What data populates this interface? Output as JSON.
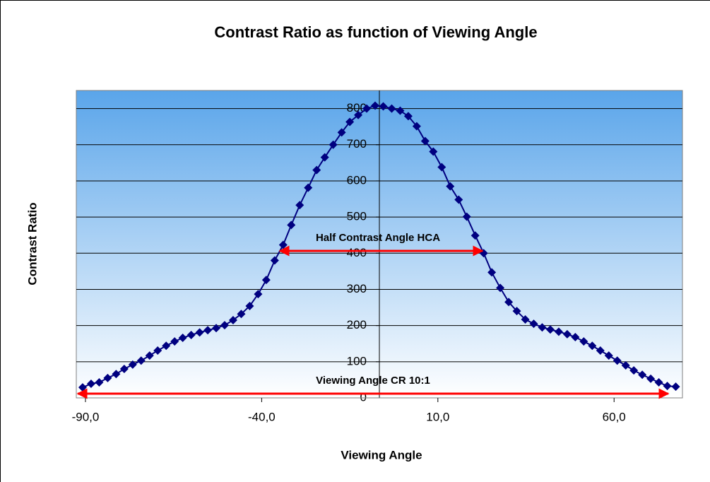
{
  "chart_data": {
    "type": "line",
    "title": "Contrast Ratio as function of Viewing Angle",
    "x_label": "Viewing Angle",
    "y_label": "Contrast Ratio",
    "x": [
      -90.8,
      -88.4,
      -86.1,
      -83.7,
      -81.3,
      -79.0,
      -76.6,
      -74.2,
      -71.8,
      -69.5,
      -67.1,
      -64.7,
      -62.4,
      -60.0,
      -57.6,
      -55.3,
      -52.9,
      -50.5,
      -48.1,
      -45.8,
      -43.4,
      -41.0,
      -38.7,
      -36.3,
      -33.9,
      -31.6,
      -29.2,
      -26.8,
      -24.4,
      -22.1,
      -19.7,
      -17.3,
      -15.0,
      -12.6,
      -10.2,
      -7.8,
      -5.5,
      -3.1,
      -0.7,
      1.6,
      4.0,
      6.4,
      8.7,
      11.1,
      13.5,
      15.9,
      18.2,
      20.6,
      23.0,
      25.3,
      27.7,
      30.1,
      32.4,
      34.8,
      37.2,
      39.6,
      41.9,
      44.3,
      46.7,
      49.0,
      51.4,
      53.8,
      56.1,
      58.5,
      60.9,
      63.3,
      65.6,
      68.0,
      70.4,
      72.7,
      75.1,
      77.5
    ],
    "series": [
      {
        "name": "Contrast Ratio",
        "color": "#000080",
        "values": [
          29,
          39,
          43,
          55,
          66,
          80,
          92,
          103,
          117,
          131,
          144,
          156,
          166,
          174,
          181,
          187,
          193,
          201,
          215,
          232,
          254,
          287,
          326,
          380,
          423,
          478,
          533,
          581,
          630,
          665,
          700,
          734,
          763,
          782,
          800,
          808,
          806,
          800,
          794,
          779,
          751,
          710,
          681,
          638,
          585,
          548,
          501,
          449,
          400,
          347,
          304,
          265,
          240,
          217,
          205,
          195,
          189,
          183,
          176,
          168,
          156,
          144,
          131,
          117,
          103,
          90,
          76,
          64,
          53,
          43,
          33,
          31
        ]
      }
    ],
    "xlim": [
      -92.6,
      79.4
    ],
    "xticks": [
      {
        "value": -90,
        "label": "-90,0"
      },
      {
        "value": -40,
        "label": "-40,0"
      },
      {
        "value": 10,
        "label": "10,0"
      },
      {
        "value": 60,
        "label": "60,0"
      }
    ],
    "ylim": [
      0,
      850
    ],
    "yticks": [
      0,
      100,
      200,
      300,
      400,
      500,
      600,
      700,
      800
    ],
    "y_axis_crosses": -6.6,
    "grid": true,
    "annotations": [
      {
        "text": "Half Contrast Angle HCA",
        "color": "#ff0000"
      },
      {
        "text": "Viewing Angle CR 10:1",
        "color": "#ff0000"
      }
    ]
  }
}
